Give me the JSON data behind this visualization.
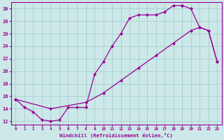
{
  "xlabel": "Windchill (Refroidissement éolien,°C)",
  "xlim": [
    -0.5,
    23.5
  ],
  "ylim": [
    11.5,
    31.0
  ],
  "xticks": [
    0,
    1,
    2,
    3,
    4,
    5,
    6,
    7,
    8,
    9,
    10,
    11,
    12,
    13,
    14,
    15,
    16,
    17,
    18,
    19,
    20,
    21,
    22,
    23
  ],
  "yticks": [
    12,
    14,
    16,
    18,
    20,
    22,
    24,
    26,
    28,
    30
  ],
  "line_color": "#990099",
  "bg_color": "#cce8e8",
  "grid_color": "#aacece",
  "series1": [
    [
      0,
      15.5
    ],
    [
      1,
      14.2
    ],
    [
      2,
      13.5
    ],
    [
      3,
      12.2
    ],
    [
      4,
      12.0
    ],
    [
      5,
      12.2
    ],
    [
      6,
      14.2
    ],
    [
      7,
      14.2
    ],
    [
      8,
      14.2
    ],
    [
      9,
      19.5
    ],
    [
      10,
      21.5
    ],
    [
      11,
      24.0
    ],
    [
      12,
      26.0
    ],
    [
      13,
      28.5
    ],
    [
      14,
      29.0
    ],
    [
      15,
      29.0
    ],
    [
      16,
      29.0
    ],
    [
      17,
      29.5
    ],
    [
      18,
      30.5
    ],
    [
      19,
      30.5
    ]
  ],
  "series2": [
    [
      19,
      30.5
    ],
    [
      20,
      30.0
    ],
    [
      21,
      27.0
    ],
    [
      22,
      26.5
    ],
    [
      23,
      21.5
    ]
  ],
  "series3": [
    [
      0,
      15.5
    ],
    [
      4,
      14.0
    ],
    [
      8,
      15.0
    ],
    [
      10,
      16.5
    ],
    [
      12,
      18.5
    ],
    [
      14,
      20.5
    ],
    [
      16,
      22.5
    ],
    [
      18,
      24.5
    ],
    [
      20,
      26.5
    ],
    [
      21,
      27.0
    ],
    [
      22,
      26.5
    ],
    [
      23,
      21.5
    ]
  ]
}
